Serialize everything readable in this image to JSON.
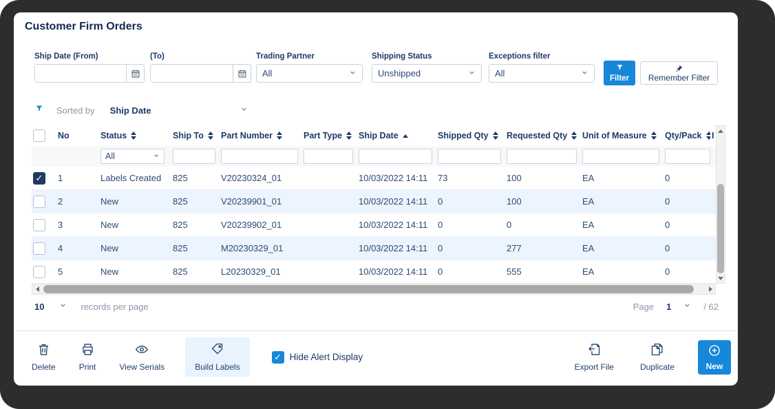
{
  "title": "Customer Firm Orders",
  "filters": {
    "ship_date_from_label": "Ship Date (From)",
    "ship_date_from_value": "",
    "ship_date_to_label": "(To)",
    "ship_date_to_value": "",
    "trading_partner_label": "Trading Partner",
    "trading_partner_value": "All",
    "shipping_status_label": "Shipping Status",
    "shipping_status_value": "Unshipped",
    "exceptions_label": "Exceptions filter",
    "exceptions_value": "All",
    "filter_button_label": "Filter",
    "remember_filter_label": "Remember Filter"
  },
  "sort_bar": {
    "sorted_by_label": "Sorted by",
    "sorted_by_value": "Ship Date"
  },
  "table": {
    "select_all_checked": false,
    "columns": [
      {
        "label": "No",
        "sort": "none"
      },
      {
        "label": "Status",
        "sort": "both"
      },
      {
        "label": "Ship To",
        "sort": "both"
      },
      {
        "label": "Part Number",
        "sort": "both"
      },
      {
        "label": "Part Type",
        "sort": "both"
      },
      {
        "label": "Ship Date",
        "sort": "asc"
      },
      {
        "label": "Shipped Qty",
        "sort": "both"
      },
      {
        "label": "Requested Qty",
        "sort": "both"
      },
      {
        "label": "Unit of Measure",
        "sort": "both"
      },
      {
        "label": "Qty/Pack",
        "sort": "both"
      },
      {
        "label": "I",
        "sort": "none"
      }
    ],
    "status_filter_value": "All",
    "rows": [
      {
        "checked": true,
        "cells": [
          "1",
          "Labels Created",
          "825",
          "V20230324_01",
          "",
          "10/03/2022 14:11",
          "73",
          "100",
          "EA",
          "0",
          ""
        ]
      },
      {
        "checked": false,
        "cells": [
          "2",
          "New",
          "825",
          "V20239901_01",
          "",
          "10/03/2022 14:11",
          "0",
          "100",
          "EA",
          "0",
          ""
        ]
      },
      {
        "checked": false,
        "cells": [
          "3",
          "New",
          "825",
          "V20239902_01",
          "",
          "10/03/2022 14:11",
          "0",
          "0",
          "EA",
          "0",
          ""
        ]
      },
      {
        "checked": false,
        "cells": [
          "4",
          "New",
          "825",
          "M20230329_01",
          "",
          "10/03/2022 14:11",
          "0",
          "277",
          "EA",
          "0",
          ""
        ]
      },
      {
        "checked": false,
        "cells": [
          "5",
          "New",
          "825",
          "L20230329_01",
          "",
          "10/03/2022 14:11",
          "0",
          "555",
          "EA",
          "0",
          ""
        ]
      }
    ]
  },
  "pagination": {
    "page_size_value": "10",
    "records_per_page_label": "records per page",
    "page_label": "Page",
    "page_value": "1",
    "total_label": "/ 62"
  },
  "toolbar": {
    "delete_label": "Delete",
    "print_label": "Print",
    "view_serials_label": "View Serials",
    "build_labels_label": "Build Labels",
    "hide_alert_label": "Hide Alert Display",
    "hide_alert_checked": true,
    "export_file_label": "Export File",
    "duplicate_label": "Duplicate",
    "new_label": "New"
  },
  "colors": {
    "accent_blue": "#1687d9",
    "navy": "#1f3a63",
    "row_alt": "#ecf4fd"
  }
}
